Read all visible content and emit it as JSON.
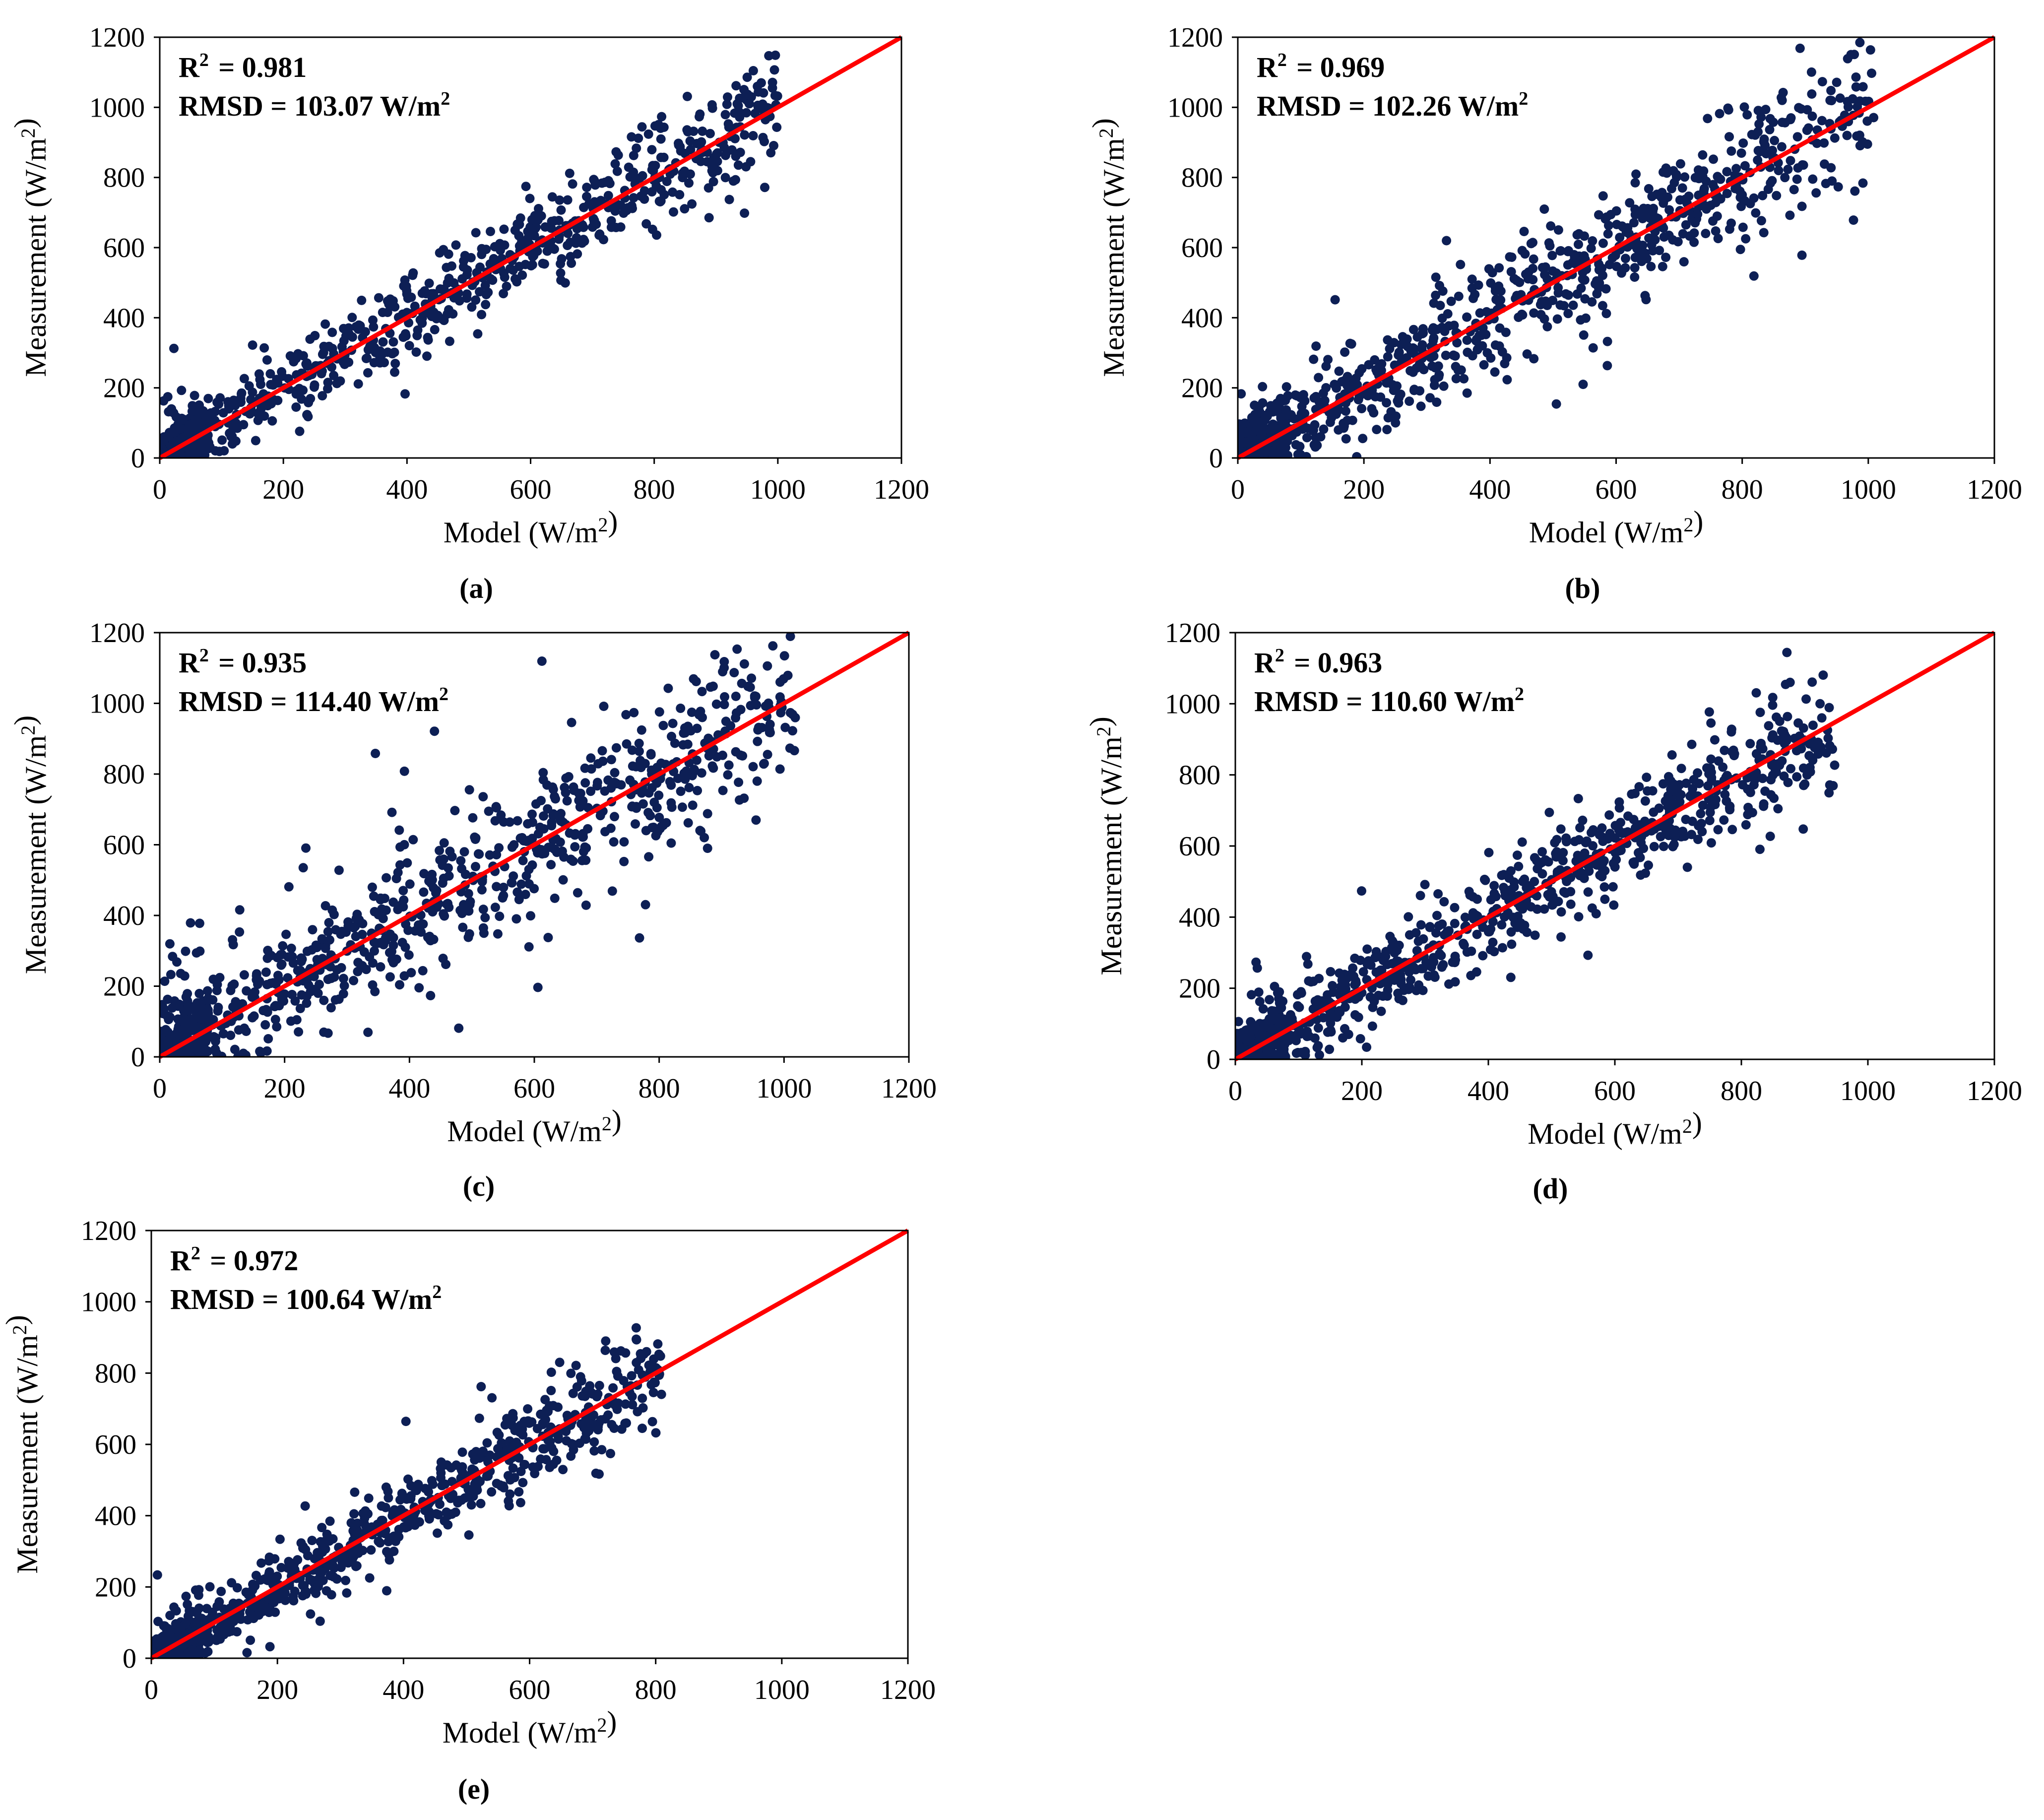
{
  "colors": {
    "points": "#0d1f55",
    "fit_line": "#ff0000",
    "axes": "#000000"
  },
  "chart_data": [
    {
      "type": "scatter",
      "panel": "(a)",
      "xlabel": "Model (W/m²)",
      "ylabel": "Measurement (W/m²)",
      "xlim": [
        0,
        1200
      ],
      "ylim": [
        0,
        1200
      ],
      "xticks": [
        "0",
        "200",
        "400",
        "600",
        "800",
        "1000",
        "1200"
      ],
      "yticks": [
        "0",
        "200",
        "400",
        "600",
        "800",
        "1000",
        "1200"
      ],
      "annotations": [
        "R² = 0.981",
        "RMSD = 103.07 W/m²"
      ],
      "line": {
        "x": [
          0,
          1200
        ],
        "y": [
          0,
          1200
        ]
      },
      "cloud": {
        "max_x": 1000,
        "spread": 40,
        "outlier_rate": 0.08,
        "count": 900
      }
    },
    {
      "type": "scatter",
      "panel": "(b)",
      "xlabel": "Model (W/m²)",
      "ylabel": "Measurement (W/m²)",
      "xlim": [
        0,
        1200
      ],
      "ylim": [
        0,
        1200
      ],
      "xticks": [
        "0",
        "200",
        "400",
        "600",
        "800",
        "1000",
        "1200"
      ],
      "yticks": [
        "0",
        "200",
        "400",
        "600",
        "800",
        "1000",
        "1200"
      ],
      "annotations": [
        "R² = 0.969",
        "RMSD = 102.26 W/m²"
      ],
      "line": {
        "x": [
          0,
          1200
        ],
        "y": [
          0,
          1200
        ]
      },
      "cloud": {
        "max_x": 1010,
        "spread": 55,
        "outlier_rate": 0.12,
        "count": 1000
      }
    },
    {
      "type": "scatter",
      "panel": "(c)",
      "xlabel": "Model (W/m²)",
      "ylabel": "Measurement (W/m²)",
      "xlim": [
        0,
        1200
      ],
      "ylim": [
        0,
        1200
      ],
      "xticks": [
        "0",
        "200",
        "400",
        "600",
        "800",
        "1000",
        "1200"
      ],
      "yticks": [
        "0",
        "200",
        "400",
        "600",
        "800",
        "1000",
        "1200"
      ],
      "annotations": [
        "R² = 0.935",
        "RMSD = 114.40 W/m²"
      ],
      "line": {
        "x": [
          0,
          1200
        ],
        "y": [
          0,
          1200
        ]
      },
      "cloud": {
        "max_x": 1020,
        "spread": 70,
        "outlier_rate": 0.18,
        "count": 1000
      }
    },
    {
      "type": "scatter",
      "panel": "(d)",
      "xlabel": "Model (W/m²)",
      "ylabel": "Measurement (W/m²)",
      "xlim": [
        0,
        1200
      ],
      "ylim": [
        0,
        1200
      ],
      "xticks": [
        "0",
        "200",
        "400",
        "600",
        "800",
        "1000",
        "1200"
      ],
      "yticks": [
        "0",
        "200",
        "400",
        "600",
        "800",
        "1000",
        "1200"
      ],
      "annotations": [
        "R² = 0.963",
        "RMSD = 110.60 W/m²"
      ],
      "line": {
        "x": [
          0,
          1200
        ],
        "y": [
          0,
          1200
        ]
      },
      "cloud": {
        "max_x": 950,
        "spread": 48,
        "outlier_rate": 0.1,
        "count": 1000
      }
    },
    {
      "type": "scatter",
      "panel": "(e)",
      "xlabel": "Model (W/m²)",
      "ylabel": "Measurement (W/m²)",
      "xlim": [
        0,
        1200
      ],
      "ylim": [
        0,
        1200
      ],
      "xticks": [
        "0",
        "200",
        "400",
        "600",
        "800",
        "1000",
        "1200"
      ],
      "yticks": [
        "0",
        "200",
        "400",
        "600",
        "800",
        "1000",
        "1200"
      ],
      "annotations": [
        "R² = 0.972",
        "RMSD = 100.64 W/m²"
      ],
      "line": {
        "x": [
          0,
          1200
        ],
        "y": [
          0,
          1200
        ]
      },
      "cloud": {
        "max_x": 810,
        "spread": 38,
        "outlier_rate": 0.07,
        "count": 900
      }
    }
  ]
}
